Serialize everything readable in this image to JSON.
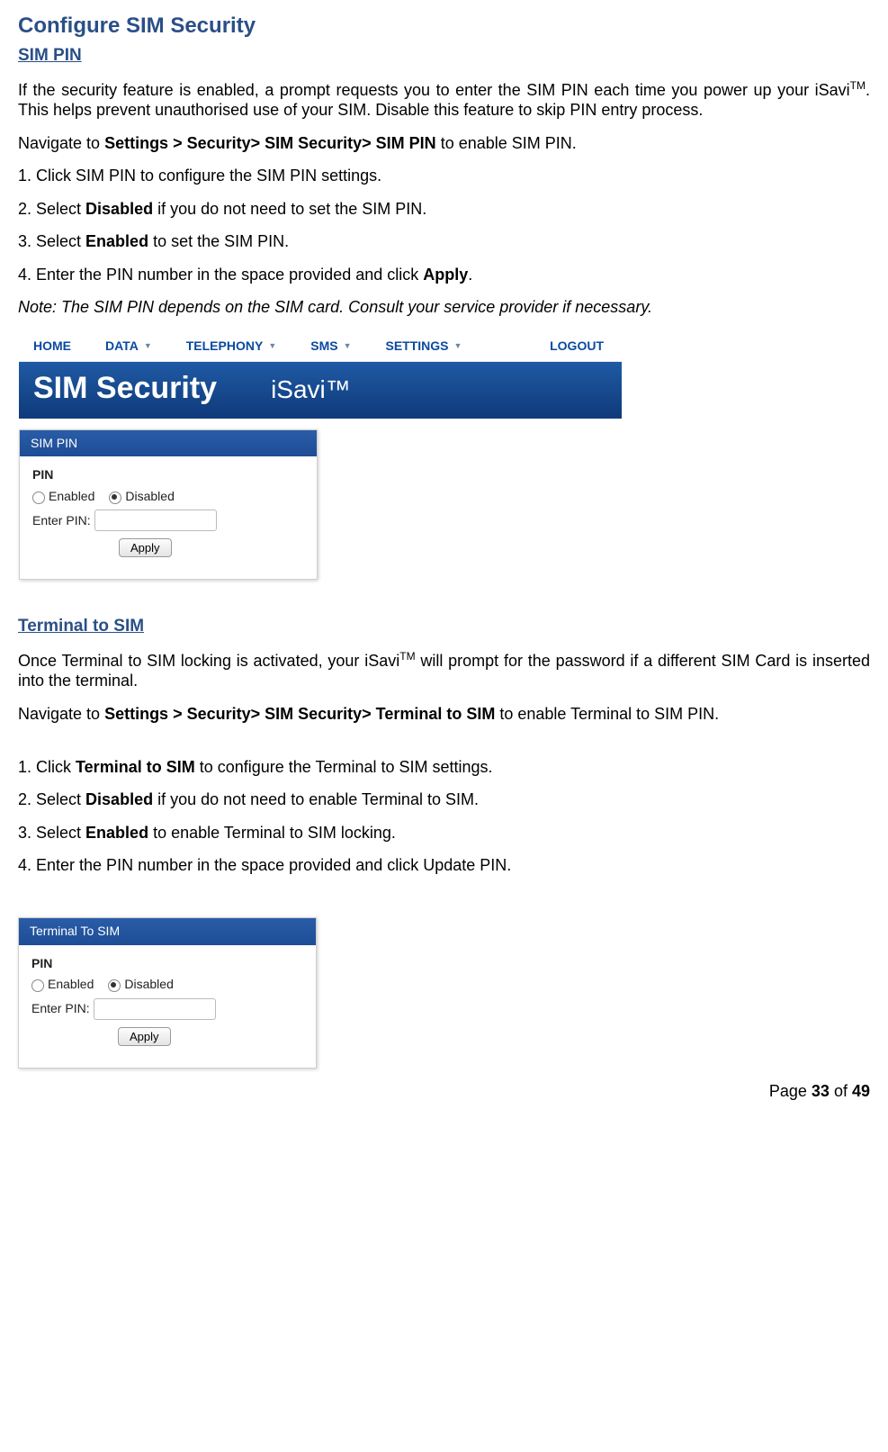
{
  "heading": "Configure SIM Security",
  "section1": {
    "title": "SIM PIN",
    "para1_a": "If the security feature is enabled, a prompt requests you to enter the SIM PIN each time you power up your iSavi",
    "para1_b": ". This helps prevent unauthorised use of your SIM. Disable this feature to skip PIN entry process.",
    "nav_pre": "Navigate to ",
    "nav_bold": "Settings > Security> SIM Security> SIM PIN",
    "nav_post": " to enable SIM PIN.",
    "step1": "1. Click SIM PIN to configure the SIM PIN settings.",
    "step2_pre": "2. Select ",
    "step2_bold": "Disabled",
    "step2_post": " if you do not need to set the SIM PIN.",
    "step3_pre": "3. Select ",
    "step3_bold": "Enabled",
    "step3_post": " to set the SIM PIN.",
    "step4_pre": "4. Enter the PIN number in the space provided and click ",
    "step4_bold": "Apply",
    "step4_post": ".",
    "note": "Note: The SIM PIN depends on the SIM card. Consult your service provider if necessary."
  },
  "screenshot1": {
    "menu": {
      "home": "HOME",
      "data": "DATA",
      "tel": "TELEPHONY",
      "sms": "SMS",
      "settings": "SETTINGS",
      "logout": "LOGOUT"
    },
    "banner_title": "SIM Security",
    "banner_brand": "iSavi™",
    "panel_head": "SIM PIN",
    "pin_label": "PIN",
    "enabled": "Enabled",
    "disabled": "Disabled",
    "enter_pin": "Enter PIN:",
    "apply": "Apply"
  },
  "section2": {
    "title": "Terminal to SIM",
    "para1_a": "Once Terminal to SIM locking is activated, your iSavi",
    "para1_b": " will prompt for the password if a different SIM Card is inserted into the terminal.",
    "nav_pre": "Navigate to ",
    "nav_bold": "Settings > Security> SIM Security> Terminal to SIM",
    "nav_post": " to enable Terminal to SIM PIN.",
    "step1_pre": "1. Click ",
    "step1_bold": "Terminal to SIM",
    "step1_post": " to configure the Terminal to SIM settings.",
    "step2_pre": "2. Select ",
    "step2_bold": "Disabled",
    "step2_post": " if you do not need to enable Terminal to SIM.",
    "step3_pre": "3. Select ",
    "step3_bold": "Enabled",
    "step3_post": " to enable Terminal to SIM locking.",
    "step4": "4. Enter the PIN number in the space provided and click Update PIN."
  },
  "screenshot2": {
    "panel_head": "Terminal To SIM",
    "pin_label": "PIN",
    "enabled": "Enabled",
    "disabled": "Disabled",
    "enter_pin": "Enter PIN:",
    "apply": "Apply"
  },
  "footer": {
    "pre": "Page ",
    "current": "33",
    "mid": " of ",
    "total": "49"
  },
  "tm": "TM"
}
